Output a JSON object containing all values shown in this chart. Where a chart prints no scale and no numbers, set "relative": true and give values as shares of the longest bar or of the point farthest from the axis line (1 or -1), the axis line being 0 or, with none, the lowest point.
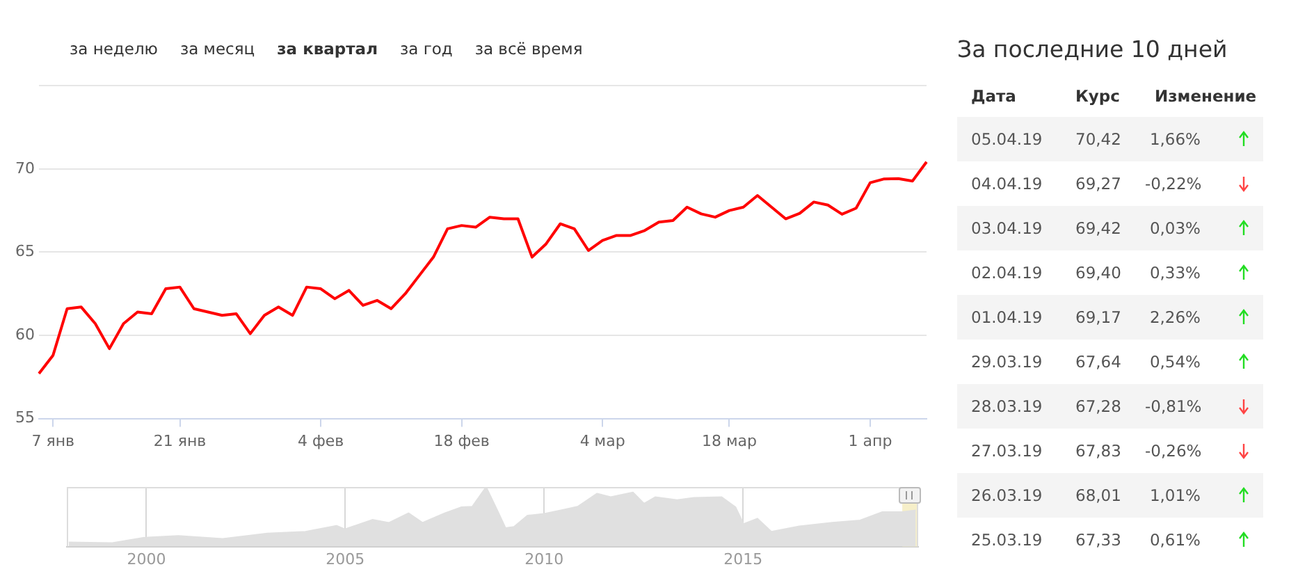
{
  "chart_data": [
    {
      "type": "line",
      "annotations": [
        "за неделю",
        "за месяц",
        "за квартал",
        "за год",
        "за всё время"
      ],
      "categories": [
        null,
        "7 янв",
        null,
        null,
        null,
        null,
        null,
        null,
        null,
        null,
        "21 янв",
        null,
        null,
        null,
        null,
        null,
        null,
        null,
        null,
        null,
        "4 фев",
        null,
        null,
        null,
        null,
        null,
        null,
        null,
        null,
        null,
        "18 фев",
        null,
        null,
        null,
        null,
        null,
        null,
        null,
        null,
        null,
        "4 мар",
        null,
        null,
        null,
        null,
        null,
        null,
        null,
        null,
        "18 мар",
        null,
        null,
        null,
        null,
        null,
        null,
        null,
        null,
        null,
        "1 апр",
        null,
        null,
        null,
        null
      ],
      "series": [
        {
          "color": "#ff0000",
          "values": [
            57.7,
            58.8,
            61.6,
            61.7,
            60.7,
            59.2,
            60.7,
            61.4,
            61.3,
            62.8,
            62.9,
            61.6,
            61.4,
            61.2,
            61.3,
            60.1,
            61.2,
            61.7,
            61.2,
            62.9,
            62.8,
            62.2,
            62.7,
            61.8,
            62.1,
            61.6,
            62.5,
            63.6,
            64.7,
            66.4,
            66.6,
            66.5,
            67.1,
            67.0,
            67.0,
            64.7,
            65.5,
            66.7,
            66.4,
            65.1,
            65.7,
            66.0,
            66.0,
            66.3,
            66.8,
            66.9,
            67.7,
            67.3,
            67.1,
            67.5,
            67.7,
            68.4,
            67.7,
            67.0,
            67.33,
            68.01,
            67.83,
            67.28,
            67.64,
            69.17,
            69.4,
            69.42,
            69.27,
            70.42
          ]
        }
      ],
      "ylim": [
        55,
        75
      ],
      "yticks": [
        55,
        60,
        65,
        70,
        {
          "value": 75,
          "label": null
        }
      ],
      "grid": "y",
      "legend": false
    },
    {
      "type": "area",
      "relative": true,
      "grid": "x",
      "legend": false,
      "x": [
        1998.05,
        1999.14,
        1999.95,
        2000.81,
        2001.92,
        2003.04,
        2004.0,
        2004.78,
        2004.99,
        2005.68,
        2006.1,
        2006.59,
        2006.94,
        2007.5,
        2007.91,
        2008.19,
        2008.54,
        2008.82,
        2009.03,
        2009.24,
        2009.58,
        2010.0,
        2010.42,
        2010.84,
        2011.33,
        2011.67,
        2012.23,
        2012.51,
        2012.79,
        2013.34,
        2013.76,
        2014.46,
        2014.81,
        2015.01,
        2015.36,
        2015.71,
        2016.41,
        2017.24,
        2017.94,
        2018.5,
        2018.99,
        2019.34
      ],
      "series": [
        {
          "color": "#e0e0e0",
          "values": [
            0.07,
            0.06,
            0.15,
            0.18,
            0.13,
            0.22,
            0.25,
            0.35,
            0.29,
            0.45,
            0.4,
            0.56,
            0.4,
            0.56,
            0.66,
            0.67,
            1,
            0.61,
            0.31,
            0.33,
            0.52,
            0.55,
            0.61,
            0.67,
            0.89,
            0.83,
            0.91,
            0.72,
            0.83,
            0.78,
            0.82,
            0.83,
            0.66,
            0.38,
            0.47,
            0.25,
            0.34,
            0.4,
            0.44,
            0.58,
            0.58,
            0.61
          ]
        }
      ],
      "xlim": [
        1998,
        2019.4
      ],
      "xticks": [
        2000,
        2005,
        2010,
        2015
      ],
      "bands": [
        {
          "axis": "x",
          "from": 2019.0,
          "to": 2019.4,
          "color": "#f6efc9"
        }
      ]
    },
    {
      "type": "other",
      "title": "За последние 10 дней",
      "annotations": [
        "Дата",
        "Курс",
        "Изменение",
        "05.04.19",
        "70,42",
        "1,66%",
        "04.04.19",
        "69,27",
        "-0,22%",
        "03.04.19",
        "69,42",
        "0,03%",
        "02.04.19",
        "69,40",
        "0,33%",
        "01.04.19",
        "69,17",
        "2,26%",
        "29.03.19",
        "67,64",
        "0,54%",
        "28.03.19",
        "67,28",
        "-0,81%",
        "27.03.19",
        "67,83",
        "-0,26%",
        "26.03.19",
        "68,01",
        "1,01%",
        "25.03.19",
        "67,33",
        "0,61%"
      ]
    }
  ]
}
